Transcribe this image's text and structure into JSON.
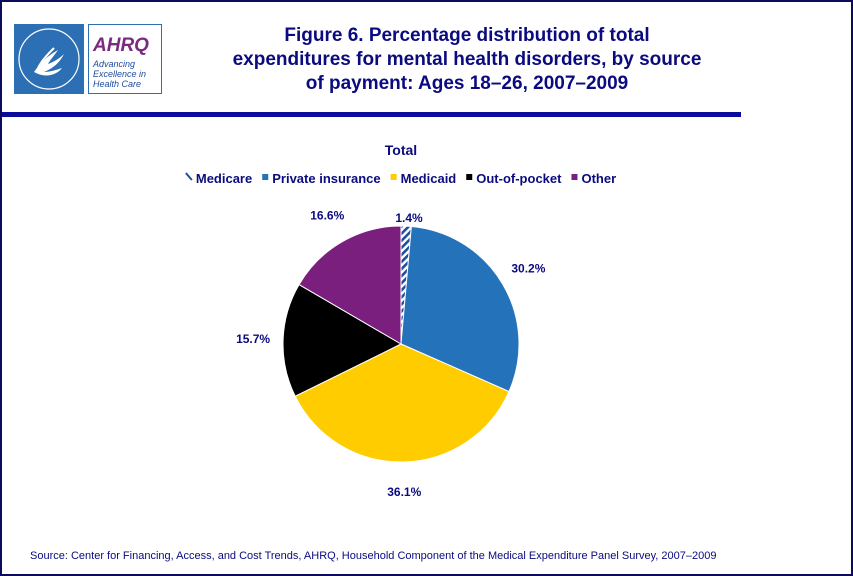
{
  "header": {
    "logo_tagline": "Advancing Excellence in Health Care",
    "logo_name": "AHRQ",
    "hhs_seal_text": "DEPARTMENT OF HEALTH & HUMAN SERVICES USA",
    "title_line1": "Figure 6. Percentage distribution of total",
    "title_line2": "expenditures for mental health disorders, by source",
    "title_line3": "of payment: Ages 18–26, 2007–2009"
  },
  "chart_data": {
    "type": "pie",
    "title": "Total",
    "legend_position": "top",
    "slices": [
      {
        "label": "Medicare",
        "value": 1.4,
        "display": "1.4%",
        "color": "#1f4e9c",
        "pattern": "hatch"
      },
      {
        "label": "Private insurance",
        "value": 30.2,
        "display": "30.2%",
        "color": "#2472b9"
      },
      {
        "label": "Medicaid",
        "value": 36.1,
        "display": "36.1%",
        "color": "#ffcc00"
      },
      {
        "label": "Out-of-pocket",
        "value": 15.7,
        "display": "15.7%",
        "color": "#000000"
      },
      {
        "label": "Other",
        "value": 16.6,
        "display": "16.6%",
        "color": "#7b1f7f"
      }
    ]
  },
  "source": "Source: Center for Financing, Access, and Cost Trends, AHRQ, Household Component of the Medical Expenditure Panel Survey, 2007–2009"
}
